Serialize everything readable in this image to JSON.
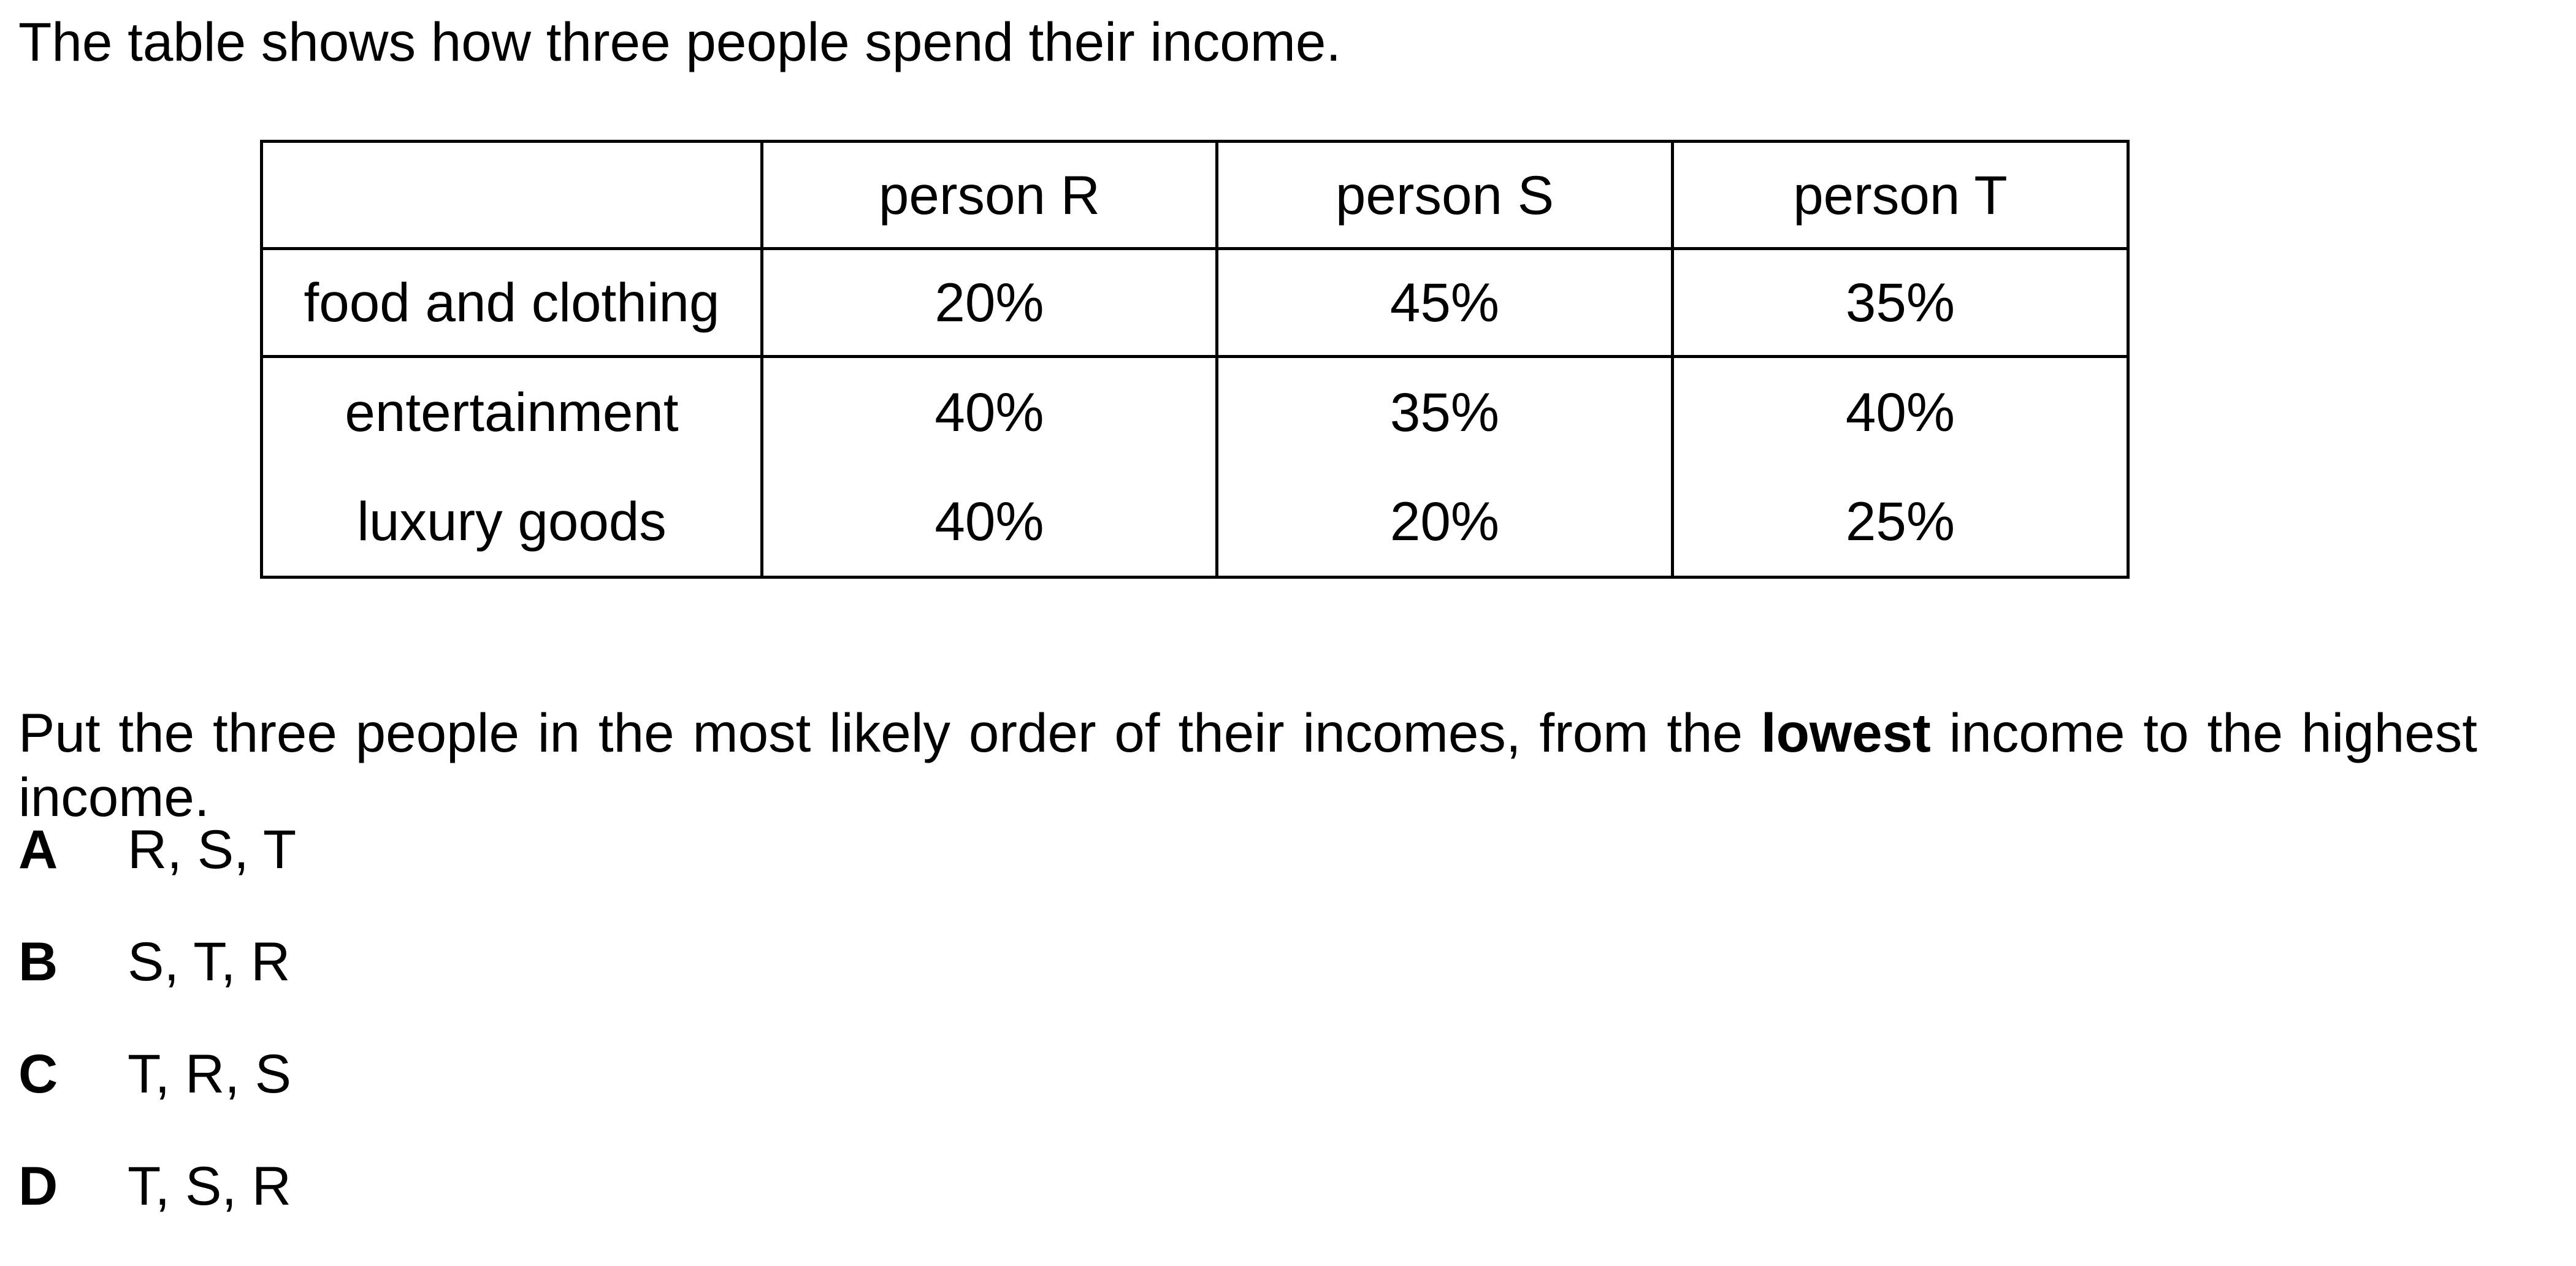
{
  "intro": "The table shows how three people spend their income.",
  "table": {
    "header": [
      "",
      "person R",
      "person S",
      "person T"
    ],
    "rows": [
      {
        "label": "food and clothing",
        "values": [
          "20%",
          "45%",
          "35%"
        ]
      },
      {
        "label": "entertainment",
        "values": [
          "40%",
          "35%",
          "40%"
        ]
      },
      {
        "label": "luxury goods",
        "values": [
          "40%",
          "20%",
          "25%"
        ]
      }
    ]
  },
  "question": {
    "before": "Put the three people in the most likely order of their incomes, from the ",
    "emphasis": "lowest",
    "after": " income to the highest income."
  },
  "options": [
    {
      "letter": "A",
      "text": "R, S, T"
    },
    {
      "letter": "B",
      "text": "S, T, R"
    },
    {
      "letter": "C",
      "text": "T, R, S"
    },
    {
      "letter": "D",
      "text": "T, S, R"
    }
  ]
}
